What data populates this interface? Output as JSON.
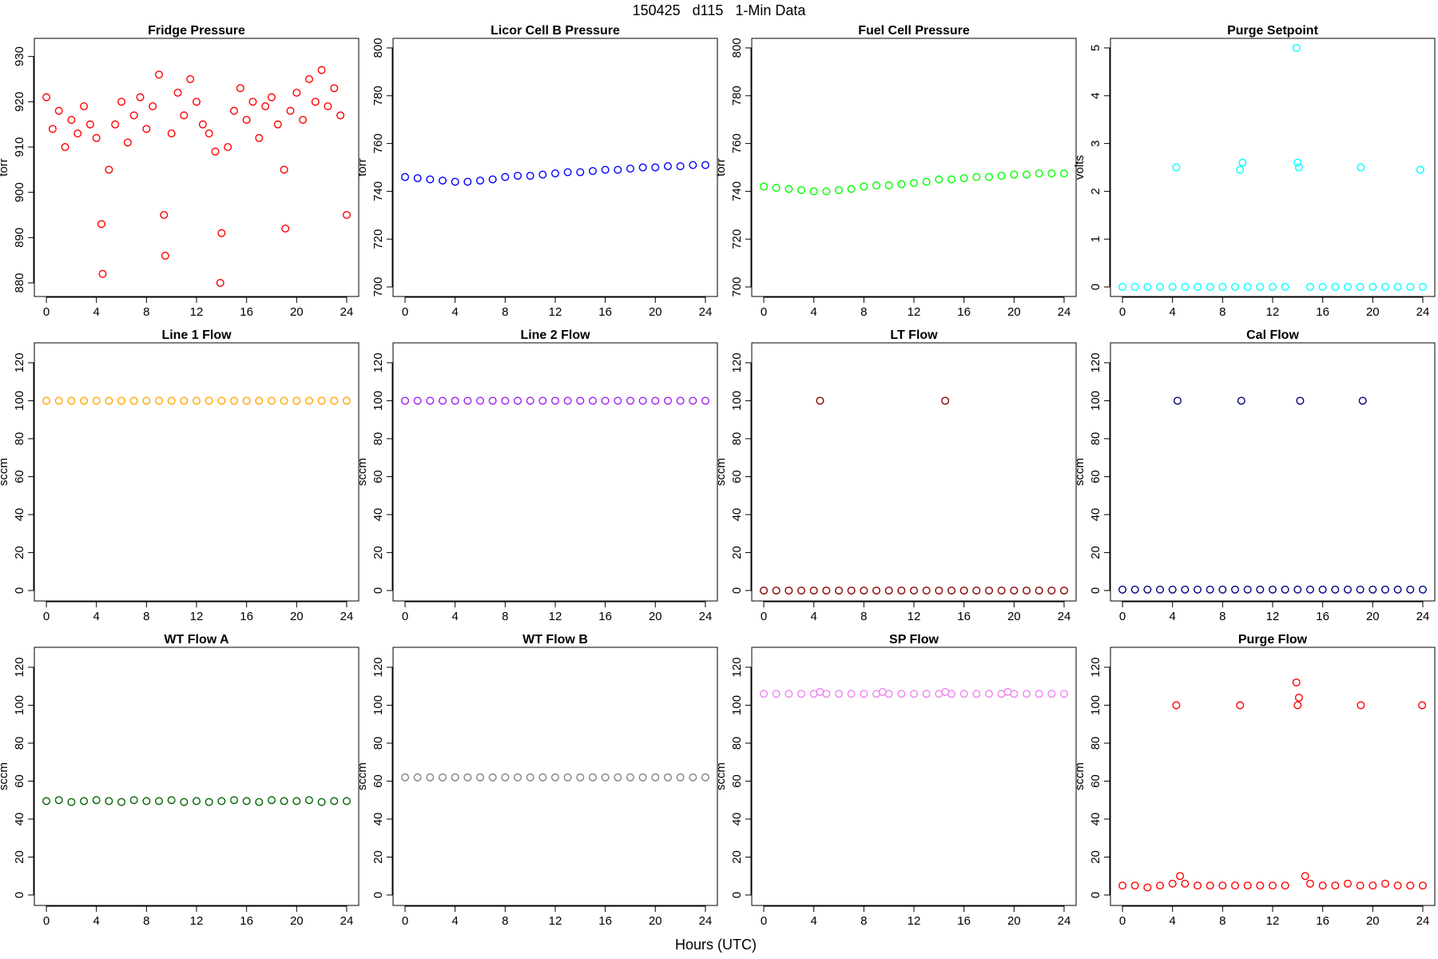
{
  "title": "150425   d115   1-Min Data",
  "xlabel": "Hours (UTC)",
  "chart_data": [
    {
      "type": "scatter",
      "title": "Fridge Pressure",
      "ylabel": "torr",
      "xlim": [
        -0.96,
        24.96
      ],
      "xticks": [
        0,
        4,
        8,
        12,
        16,
        20,
        24
      ],
      "ylim": [
        877,
        934
      ],
      "yticks": [
        880,
        890,
        900,
        910,
        920,
        930
      ],
      "x": [
        0,
        0.5,
        1,
        1.5,
        2,
        2.5,
        3,
        3.5,
        4,
        4.4,
        4.5,
        5,
        5.5,
        6,
        6.5,
        7,
        7.5,
        8,
        8.5,
        9,
        9.4,
        9.5,
        10,
        10.5,
        11,
        11.5,
        12,
        12.5,
        13,
        13.5,
        13.9,
        14,
        14.5,
        15,
        15.5,
        16,
        16.5,
        17,
        17.5,
        18,
        18.5,
        19,
        19.1,
        19.5,
        20,
        20.5,
        21,
        21.5,
        22,
        22.5,
        23,
        23.5,
        24
      ],
      "series": [
        {
          "color": "#ff0000",
          "values": [
            921,
            914,
            918,
            910,
            916,
            913,
            919,
            915,
            912,
            893,
            882,
            905,
            915,
            920,
            911,
            917,
            921,
            914,
            919,
            926,
            895,
            886,
            913,
            922,
            917,
            925,
            920,
            915,
            913,
            909,
            880,
            891,
            910,
            918,
            923,
            916,
            920,
            912,
            919,
            921,
            915,
            905,
            892,
            918,
            922,
            916,
            925,
            920,
            927,
            919,
            923,
            917,
            895
          ]
        }
      ]
    },
    {
      "type": "scatter",
      "title": "Licor Cell B Pressure",
      "ylabel": "torr",
      "xlim": [
        -0.96,
        24.96
      ],
      "xticks": [
        0,
        4,
        8,
        12,
        16,
        20,
        24
      ],
      "ylim": [
        696,
        804
      ],
      "yticks": [
        700,
        720,
        740,
        760,
        780,
        800
      ],
      "x": [
        0,
        1,
        2,
        3,
        4,
        5,
        6,
        7,
        8,
        9,
        10,
        11,
        12,
        13,
        14,
        15,
        16,
        17,
        18,
        19,
        20,
        21,
        22,
        23,
        24
      ],
      "series": [
        {
          "color": "#0000ff",
          "values": [
            746,
            745.5,
            745,
            744.5,
            744,
            744,
            744.5,
            745,
            746,
            746.5,
            746.5,
            747,
            747.5,
            748,
            748,
            748.5,
            749,
            749,
            749.5,
            750,
            750,
            750.5,
            750.5,
            751,
            751
          ]
        }
      ]
    },
    {
      "type": "scatter",
      "title": "Fuel Cell Pressure",
      "ylabel": "torr",
      "xlim": [
        -0.96,
        24.96
      ],
      "xticks": [
        0,
        4,
        8,
        12,
        16,
        20,
        24
      ],
      "ylim": [
        696,
        804
      ],
      "yticks": [
        700,
        720,
        740,
        760,
        780,
        800
      ],
      "x": [
        0,
        1,
        2,
        3,
        4,
        5,
        6,
        7,
        8,
        9,
        10,
        11,
        12,
        13,
        14,
        15,
        16,
        17,
        18,
        19,
        20,
        21,
        22,
        23,
        24
      ],
      "series": [
        {
          "color": "#00ff00",
          "values": [
            742,
            741.5,
            741,
            740.5,
            740,
            740,
            740.5,
            741,
            742,
            742.5,
            742.5,
            743,
            743.5,
            744,
            745,
            745,
            745.5,
            746,
            746,
            746.5,
            747,
            747,
            747.5,
            747.5,
            747.5
          ]
        }
      ]
    },
    {
      "type": "scatter",
      "title": "Purge Setpoint",
      "ylabel": "volts",
      "xlim": [
        -0.96,
        24.96
      ],
      "xticks": [
        0,
        4,
        8,
        12,
        16,
        20,
        24
      ],
      "ylim": [
        -0.2,
        5.2
      ],
      "yticks": [
        0,
        1,
        2,
        3,
        4,
        5
      ],
      "x": [
        0,
        1,
        2,
        3,
        4,
        4.3,
        5,
        6,
        7,
        8,
        9,
        9.4,
        9.6,
        10,
        11,
        12,
        13,
        13.9,
        14,
        14.1,
        15,
        16,
        17,
        18,
        19,
        19.05,
        20,
        21,
        22,
        23,
        23.8,
        24
      ],
      "series": [
        {
          "color": "#00ffff",
          "values": [
            0,
            0,
            0,
            0,
            0,
            2.5,
            0,
            0,
            0,
            0,
            0,
            2.45,
            2.6,
            0,
            0,
            0,
            0,
            5,
            2.6,
            2.5,
            0,
            0,
            0,
            0,
            0,
            2.5,
            0,
            0,
            0,
            0,
            2.45,
            0
          ]
        }
      ]
    },
    {
      "type": "scatter",
      "title": "Line 1 Flow",
      "ylabel": "sccm",
      "xlim": [
        -0.96,
        24.96
      ],
      "xticks": [
        0,
        4,
        8,
        12,
        16,
        20,
        24
      ],
      "ylim": [
        -5.5,
        130.5
      ],
      "yticks": [
        0,
        20,
        40,
        60,
        80,
        100,
        120
      ],
      "x": [
        0,
        1,
        2,
        3,
        4,
        5,
        6,
        7,
        8,
        9,
        10,
        11,
        12,
        13,
        14,
        15,
        16,
        17,
        18,
        19,
        20,
        21,
        22,
        23,
        24
      ],
      "series": [
        {
          "color": "#ffa500",
          "values": [
            100,
            100,
            100,
            100,
            100,
            100,
            100,
            100,
            100,
            100,
            100,
            100,
            100,
            100,
            100,
            100,
            100,
            100,
            100,
            100,
            100,
            100,
            100,
            100,
            100
          ]
        }
      ]
    },
    {
      "type": "scatter",
      "title": "Line 2 Flow",
      "ylabel": "sccm",
      "xlim": [
        -0.96,
        24.96
      ],
      "xticks": [
        0,
        4,
        8,
        12,
        16,
        20,
        24
      ],
      "ylim": [
        -5.5,
        130.5
      ],
      "yticks": [
        0,
        20,
        40,
        60,
        80,
        100,
        120
      ],
      "x": [
        0,
        1,
        2,
        3,
        4,
        5,
        6,
        7,
        8,
        9,
        10,
        11,
        12,
        13,
        14,
        15,
        16,
        17,
        18,
        19,
        20,
        21,
        22,
        23,
        24
      ],
      "series": [
        {
          "color": "#a020f0",
          "values": [
            100,
            100,
            100,
            100,
            100,
            100,
            100,
            100,
            100,
            100,
            100,
            100,
            100,
            100,
            100,
            100,
            100,
            100,
            100,
            100,
            100,
            100,
            100,
            100,
            100
          ]
        }
      ]
    },
    {
      "type": "scatter",
      "title": "LT Flow",
      "ylabel": "sccm",
      "xlim": [
        -0.96,
        24.96
      ],
      "xticks": [
        0,
        4,
        8,
        12,
        16,
        20,
        24
      ],
      "ylim": [
        -5.5,
        130.5
      ],
      "yticks": [
        0,
        20,
        40,
        60,
        80,
        100,
        120
      ],
      "x": [
        0,
        1,
        2,
        3,
        4,
        4.5,
        5,
        6,
        7,
        8,
        9,
        10,
        11,
        12,
        13,
        14,
        14.5,
        15,
        16,
        17,
        18,
        19,
        20,
        21,
        22,
        23,
        24
      ],
      "series": [
        {
          "color": "#8b0000",
          "values": [
            0,
            0,
            0,
            0,
            0,
            100,
            0,
            0,
            0,
            0,
            0,
            0,
            0,
            0,
            0,
            0,
            100,
            0,
            0,
            0,
            0,
            0,
            0,
            0,
            0,
            0,
            0
          ]
        }
      ]
    },
    {
      "type": "scatter",
      "title": "Cal Flow",
      "ylabel": "sccm",
      "xlim": [
        -0.96,
        24.96
      ],
      "xticks": [
        0,
        4,
        8,
        12,
        16,
        20,
        24
      ],
      "ylim": [
        -5.5,
        130.5
      ],
      "yticks": [
        0,
        20,
        40,
        60,
        80,
        100,
        120
      ],
      "x": [
        0,
        1,
        2,
        3,
        4,
        4.4,
        5,
        6,
        7,
        8,
        9,
        9.5,
        10,
        11,
        12,
        13,
        14,
        14.2,
        15,
        16,
        17,
        18,
        19,
        19.2,
        20,
        21,
        22,
        23,
        24
      ],
      "series": [
        {
          "color": "#000080",
          "values": [
            0.5,
            0.5,
            0.5,
            0.5,
            0.5,
            100,
            0.5,
            0.5,
            0.5,
            0.5,
            0.5,
            100,
            0.5,
            0.5,
            0.5,
            0.5,
            0.5,
            100,
            0.5,
            0.5,
            0.5,
            0.5,
            0.5,
            100,
            0.5,
            0.5,
            0.5,
            0.5,
            0.5
          ]
        }
      ]
    },
    {
      "type": "scatter",
      "title": "WT Flow A",
      "ylabel": "sccm",
      "xlim": [
        -0.96,
        24.96
      ],
      "xticks": [
        0,
        4,
        8,
        12,
        16,
        20,
        24
      ],
      "ylim": [
        -5.5,
        130.5
      ],
      "yticks": [
        0,
        20,
        40,
        60,
        80,
        100,
        120
      ],
      "x": [
        0,
        1,
        2,
        3,
        4,
        5,
        6,
        7,
        8,
        9,
        10,
        11,
        12,
        13,
        14,
        15,
        16,
        17,
        18,
        19,
        20,
        21,
        22,
        23,
        24
      ],
      "series": [
        {
          "color": "#006400",
          "values": [
            49.5,
            50,
            49,
            49.5,
            50,
            49.5,
            49,
            50,
            49.5,
            49.5,
            50,
            49,
            49.5,
            49,
            49.5,
            50,
            49.5,
            49,
            50,
            49.5,
            49.5,
            50,
            49,
            49.5,
            49.5
          ]
        }
      ]
    },
    {
      "type": "scatter",
      "title": "WT Flow B",
      "ylabel": "sccm",
      "xlim": [
        -0.96,
        24.96
      ],
      "xticks": [
        0,
        4,
        8,
        12,
        16,
        20,
        24
      ],
      "ylim": [
        -5.5,
        130.5
      ],
      "yticks": [
        0,
        20,
        40,
        60,
        80,
        100,
        120
      ],
      "x": [
        0,
        1,
        2,
        3,
        4,
        5,
        6,
        7,
        8,
        9,
        10,
        11,
        12,
        13,
        14,
        15,
        16,
        17,
        18,
        19,
        20,
        21,
        22,
        23,
        24
      ],
      "series": [
        {
          "color": "#808080",
          "values": [
            62,
            62,
            62,
            62,
            62,
            62,
            62,
            62,
            62,
            62,
            62,
            62,
            62,
            62,
            62,
            62,
            62,
            62,
            62,
            62,
            62,
            62,
            62,
            62,
            62
          ]
        }
      ]
    },
    {
      "type": "scatter",
      "title": "SP Flow",
      "ylabel": "sccm",
      "xlim": [
        -0.96,
        24.96
      ],
      "xticks": [
        0,
        4,
        8,
        12,
        16,
        20,
        24
      ],
      "ylim": [
        -5.5,
        130.5
      ],
      "yticks": [
        0,
        20,
        40,
        60,
        80,
        100,
        120
      ],
      "x": [
        0,
        1,
        2,
        3,
        4,
        4.5,
        5,
        6,
        7,
        8,
        9,
        9.5,
        10,
        11,
        12,
        13,
        14,
        14.5,
        15,
        16,
        17,
        18,
        19,
        19.5,
        20,
        21,
        22,
        23,
        24
      ],
      "series": [
        {
          "color": "#ee82ee",
          "values": [
            106,
            106,
            106,
            106,
            106,
            107,
            106,
            106,
            106,
            106,
            106,
            107,
            106,
            106,
            106,
            106,
            106,
            107,
            106,
            106,
            106,
            106,
            106,
            107,
            106,
            106,
            106,
            106,
            106
          ]
        }
      ]
    },
    {
      "type": "scatter",
      "title": "Purge Flow",
      "ylabel": "sccm",
      "xlim": [
        -0.96,
        24.96
      ],
      "xticks": [
        0,
        4,
        8,
        12,
        16,
        20,
        24
      ],
      "ylim": [
        -5.5,
        130.5
      ],
      "yticks": [
        0,
        20,
        40,
        60,
        80,
        100,
        120
      ],
      "x": [
        0,
        1,
        2,
        3,
        4,
        4.3,
        4.6,
        5,
        6,
        7,
        8,
        9,
        9.4,
        10,
        11,
        12,
        13,
        13.9,
        14,
        14.1,
        14.6,
        15,
        16,
        17,
        18,
        19,
        19.05,
        20,
        21,
        22,
        23,
        23.95,
        24
      ],
      "series": [
        {
          "color": "#ff0000",
          "values": [
            5,
            5,
            4,
            5,
            6,
            100,
            10,
            6,
            5,
            5,
            5,
            5,
            100,
            5,
            5,
            5,
            5,
            112,
            100,
            104,
            10,
            6,
            5,
            5,
            6,
            5,
            100,
            5,
            6,
            5,
            5,
            100,
            5
          ]
        }
      ]
    }
  ]
}
